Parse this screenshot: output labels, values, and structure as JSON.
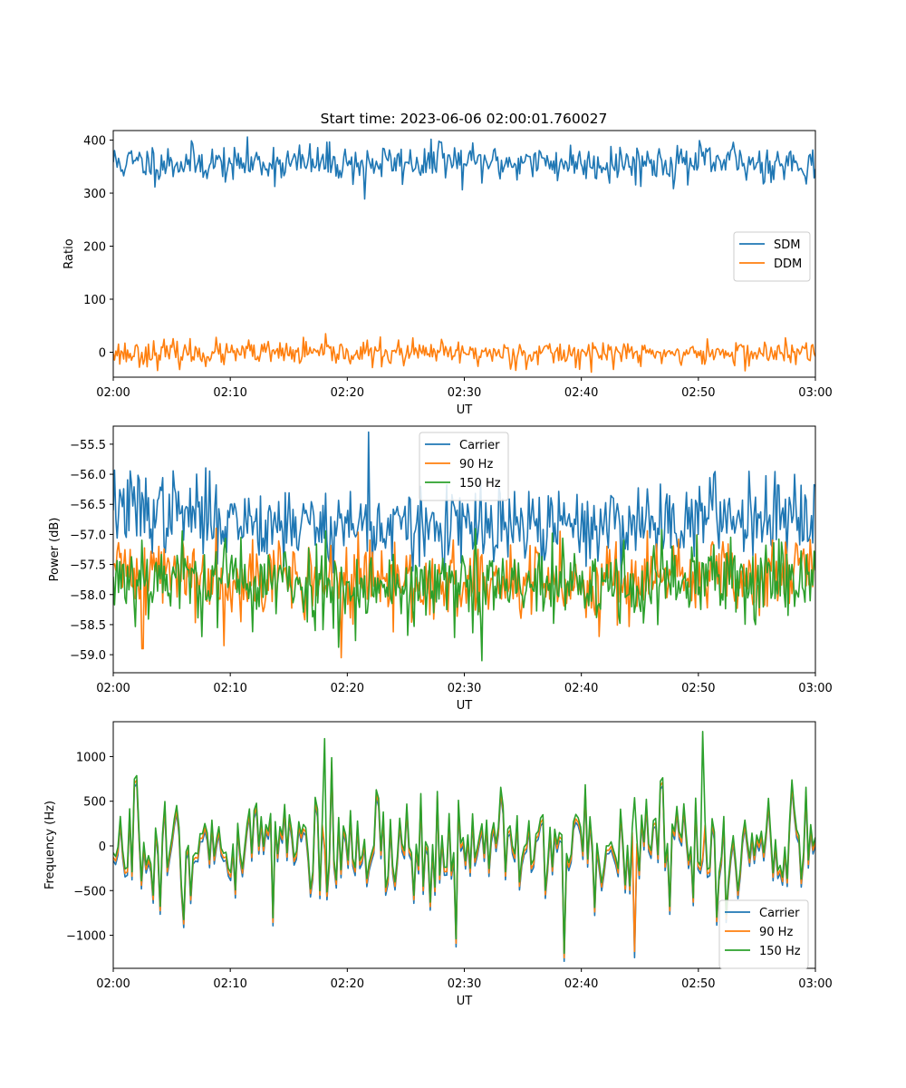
{
  "figure_title": "Start time: 2023-06-06 02:00:01.760027",
  "colors": {
    "blue": "#1f77b4",
    "orange": "#ff7f0e",
    "green": "#2ca02c"
  },
  "chart_data": [
    {
      "type": "line",
      "ylabel": "Ratio",
      "xlabel": "UT",
      "x_range": [
        "02:00",
        "03:00"
      ],
      "x_ticks": [
        "02:00",
        "02:10",
        "02:20",
        "02:30",
        "02:40",
        "02:50",
        "03:00"
      ],
      "ylim": [
        -47,
        418
      ],
      "y_ticks": [
        0,
        100,
        200,
        300,
        400
      ],
      "legend_position": "center-right",
      "series": [
        {
          "name": "SDM",
          "color": "#1f77b4",
          "base": 357,
          "amp": 18,
          "points": 540,
          "seed": 11,
          "x": [
            "02:00",
            "02:05",
            "02:10",
            "02:15",
            "02:20",
            "02:21.5",
            "02:25",
            "02:28",
            "02:30",
            "02:35",
            "02:40",
            "02:45",
            "02:50",
            "02:53",
            "02:55",
            "03:00"
          ],
          "y": [
            358,
            360,
            356,
            357,
            352,
            289,
            358,
            396,
            355,
            357,
            356,
            358,
            350,
            396,
            357,
            346
          ]
        },
        {
          "name": "DDM",
          "color": "#ff7f0e",
          "base": -2,
          "amp": 12,
          "points": 540,
          "seed": 23,
          "x": [
            "02:00",
            "02:10",
            "02:20",
            "02:30",
            "02:40",
            "02:50",
            "03:00"
          ],
          "y": [
            -2,
            0,
            2,
            -1,
            0,
            1,
            -8
          ]
        }
      ]
    },
    {
      "type": "line",
      "ylabel": "Power (dB)",
      "xlabel": "UT",
      "x_range": [
        "02:00",
        "03:00"
      ],
      "x_ticks": [
        "02:00",
        "02:10",
        "02:20",
        "02:30",
        "02:40",
        "02:50",
        "03:00"
      ],
      "ylim": [
        -59.3,
        -55.2
      ],
      "y_ticks": [
        "−59.0",
        "−58.5",
        "−58.0",
        "−57.5",
        "−57.0",
        "−56.5",
        "−56.0",
        "−55.5"
      ],
      "y_tick_values": [
        -59.0,
        -58.5,
        -58.0,
        -57.5,
        -57.0,
        -56.5,
        -56.0,
        -55.5
      ],
      "legend_position": "top-center",
      "series": [
        {
          "name": "Carrier",
          "color": "#1f77b4",
          "base": -56.55,
          "amp": 0.33,
          "trend": -0.45,
          "points": 540,
          "seed": 37,
          "x": [
            "02:00",
            "02:10",
            "02:20",
            "02:21.8",
            "02:30",
            "02:40",
            "02:50",
            "03:00"
          ],
          "y": [
            -56.6,
            -56.5,
            -56.6,
            -55.3,
            -56.7,
            -56.9,
            -57.0,
            -56.2
          ]
        },
        {
          "name": "90 Hz",
          "color": "#ff7f0e",
          "base": -57.55,
          "amp": 0.32,
          "trend": -0.35,
          "points": 540,
          "seed": 41,
          "x": [
            "02:00",
            "02:02.5",
            "02:09.5",
            "02:19.5",
            "02:30",
            "02:40",
            "02:50",
            "03:00"
          ],
          "y": [
            -57.5,
            -58.9,
            -58.85,
            -59.05,
            -57.8,
            -58.0,
            -58.0,
            -57.3
          ]
        },
        {
          "name": "150 Hz",
          "color": "#2ca02c",
          "base": -57.65,
          "amp": 0.36,
          "trend": -0.3,
          "points": 540,
          "seed": 53,
          "x": [
            "02:00",
            "02:10",
            "02:20",
            "02:31.5",
            "02:40",
            "02:50",
            "03:00"
          ],
          "y": [
            -57.7,
            -57.5,
            -57.8,
            -59.1,
            -58.0,
            -58.0,
            -57.6
          ]
        }
      ]
    },
    {
      "type": "line",
      "ylabel": "Frequency (Hz)",
      "xlabel": "UT",
      "x_range": [
        "02:00",
        "03:00"
      ],
      "x_ticks": [
        "02:00",
        "02:10",
        "02:20",
        "02:30",
        "02:40",
        "02:50",
        "03:00"
      ],
      "ylim": [
        -1370,
        1390
      ],
      "y_ticks": [
        "−1000",
        "−500",
        "0",
        "500",
        "1000"
      ],
      "y_tick_values": [
        -1000,
        -500,
        0,
        500,
        1000
      ],
      "legend_position": "bottom-right",
      "series": [
        {
          "name": "Carrier",
          "color": "#1f77b4",
          "offset": -60,
          "points": 300,
          "seed": 71,
          "x": [
            "02:00",
            "02:10",
            "02:20",
            "02:30",
            "02:40",
            "02:44.5",
            "02:50",
            "03:00"
          ],
          "y": [
            -60,
            0,
            0,
            0,
            0,
            -1250,
            0,
            150
          ]
        },
        {
          "name": "90 Hz",
          "color": "#ff7f0e",
          "offset": -20,
          "points": 300,
          "seed": 71,
          "x": [
            "02:00",
            "02:10",
            "02:20",
            "02:30",
            "02:40",
            "02:44.5",
            "02:50",
            "03:00"
          ],
          "y": [
            -20,
            0,
            0,
            0,
            0,
            -1180,
            0,
            200
          ]
        },
        {
          "name": "150 Hz",
          "color": "#2ca02c",
          "offset": 30,
          "points": 300,
          "seed": 71,
          "x": [
            "02:00",
            "02:10",
            "02:18",
            "02:30",
            "02:40",
            "02:50.3",
            "03:00"
          ],
          "y": [
            30,
            0,
            1200,
            0,
            0,
            1280,
            250
          ]
        }
      ]
    }
  ]
}
